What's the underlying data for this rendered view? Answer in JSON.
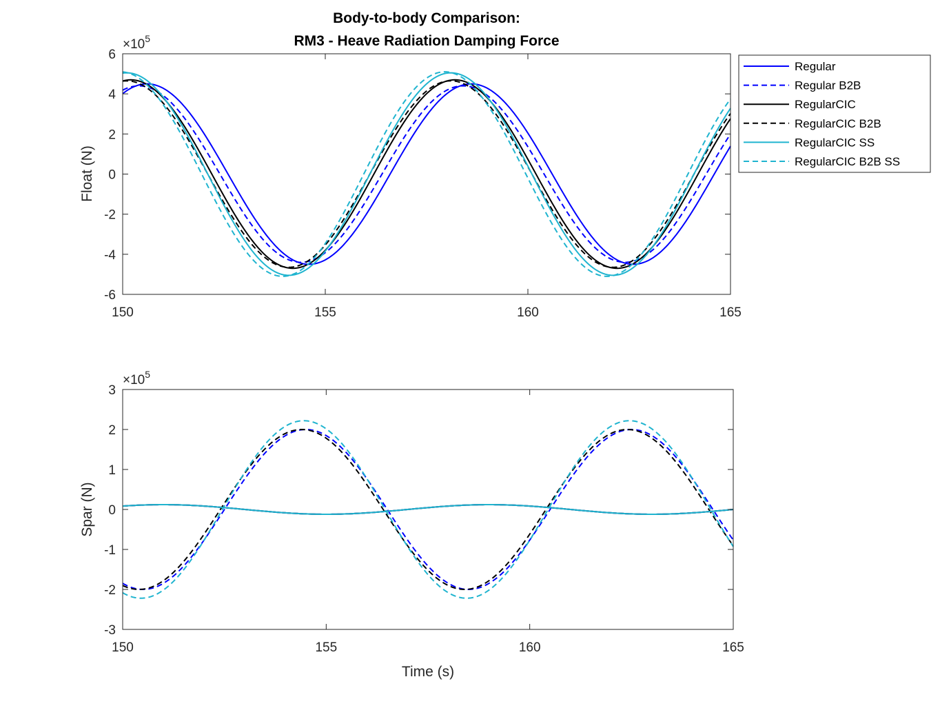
{
  "title_lines": [
    "Body-to-body Comparison:",
    "RM3 - Heave Radiation Damping Force"
  ],
  "chart_data": [
    {
      "type": "line",
      "ylabel": "Float (N)",
      "xlabel": "",
      "xlim": [
        150,
        165
      ],
      "ylim": [
        -6,
        6
      ],
      "y_multiplier": "×10",
      "y_exponent": "5",
      "xticks": [
        150,
        155,
        160,
        165
      ],
      "yticks": [
        -6,
        -4,
        -2,
        0,
        2,
        4,
        6
      ],
      "grid": false,
      "legend_position": "outside-top-right",
      "series": [
        {
          "name": "Regular",
          "color": "#0000ff",
          "dash": "solid",
          "amplitude": 4.5,
          "x_at_peak": 150.6,
          "period": 8.0
        },
        {
          "name": "Regular B2B",
          "color": "#0000ff",
          "dash": "dashed",
          "amplitude": 4.4,
          "x_at_peak": 150.4,
          "period": 8.0
        },
        {
          "name": "RegularCIC",
          "color": "#000000",
          "dash": "solid",
          "amplitude": 4.7,
          "x_at_peak": 150.2,
          "period": 8.0
        },
        {
          "name": "RegularCIC B2B",
          "color": "#000000",
          "dash": "dashed",
          "amplitude": 4.65,
          "x_at_peak": 150.1,
          "period": 8.0
        },
        {
          "name": "RegularCIC SS",
          "color": "#1fb4cf",
          "dash": "solid",
          "amplitude": 5.05,
          "x_at_peak": 150.1,
          "period": 8.0
        },
        {
          "name": "RegularCIC B2B SS",
          "color": "#1fb4cf",
          "dash": "dashed",
          "amplitude": 5.1,
          "x_at_peak": 149.95,
          "period": 8.0
        }
      ]
    },
    {
      "type": "line",
      "ylabel": "Spar (N)",
      "xlabel": "Time (s)",
      "xlim": [
        150,
        165
      ],
      "ylim": [
        -3,
        3
      ],
      "y_multiplier": "×10",
      "y_exponent": "5",
      "xticks": [
        150,
        155,
        160,
        165
      ],
      "yticks": [
        -3,
        -2,
        -1,
        0,
        1,
        2,
        3
      ],
      "grid": false,
      "series": [
        {
          "name": "Regular",
          "color": "#0000ff",
          "dash": "solid",
          "amplitude": 0.12,
          "x_at_peak": 151.0,
          "period": 8.0
        },
        {
          "name": "Regular B2B",
          "color": "#0000ff",
          "dash": "dashed",
          "amplitude": 2.0,
          "x_at_peak": 154.5,
          "period": 8.0
        },
        {
          "name": "RegularCIC",
          "color": "#000000",
          "dash": "solid",
          "amplitude": 0.12,
          "x_at_peak": 151.0,
          "period": 8.0
        },
        {
          "name": "RegularCIC B2B",
          "color": "#000000",
          "dash": "dashed",
          "amplitude": 2.0,
          "x_at_peak": 154.4,
          "period": 8.0
        },
        {
          "name": "RegularCIC SS",
          "color": "#1fb4cf",
          "dash": "solid",
          "amplitude": 0.12,
          "x_at_peak": 151.0,
          "period": 8.0
        },
        {
          "name": "RegularCIC B2B SS",
          "color": "#1fb4cf",
          "dash": "dashed",
          "amplitude": 2.22,
          "x_at_peak": 154.45,
          "period": 8.0
        }
      ]
    }
  ]
}
